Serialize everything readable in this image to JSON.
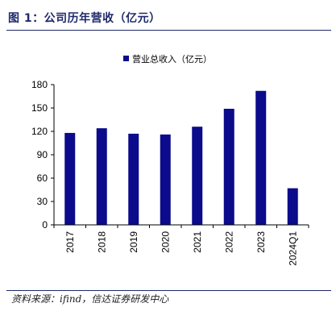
{
  "figure": {
    "title": "图 1：公司历年营收（亿元）",
    "source": "资料来源：ifind，信达证券研发中心"
  },
  "chart_data": {
    "type": "bar",
    "categories": [
      "2017",
      "2018",
      "2019",
      "2020",
      "2021",
      "2022",
      "2023",
      "2024Q1"
    ],
    "series": [
      {
        "name": "营业总收入（亿元）",
        "values": [
          118,
          124,
          117,
          116,
          126,
          149,
          172,
          47
        ]
      }
    ],
    "ylim": [
      0,
      180
    ],
    "yticks": [
      0,
      30,
      60,
      90,
      120,
      150,
      180
    ],
    "legend_position": "top-center",
    "grid": false,
    "bar_color": "#0b0b8c"
  }
}
